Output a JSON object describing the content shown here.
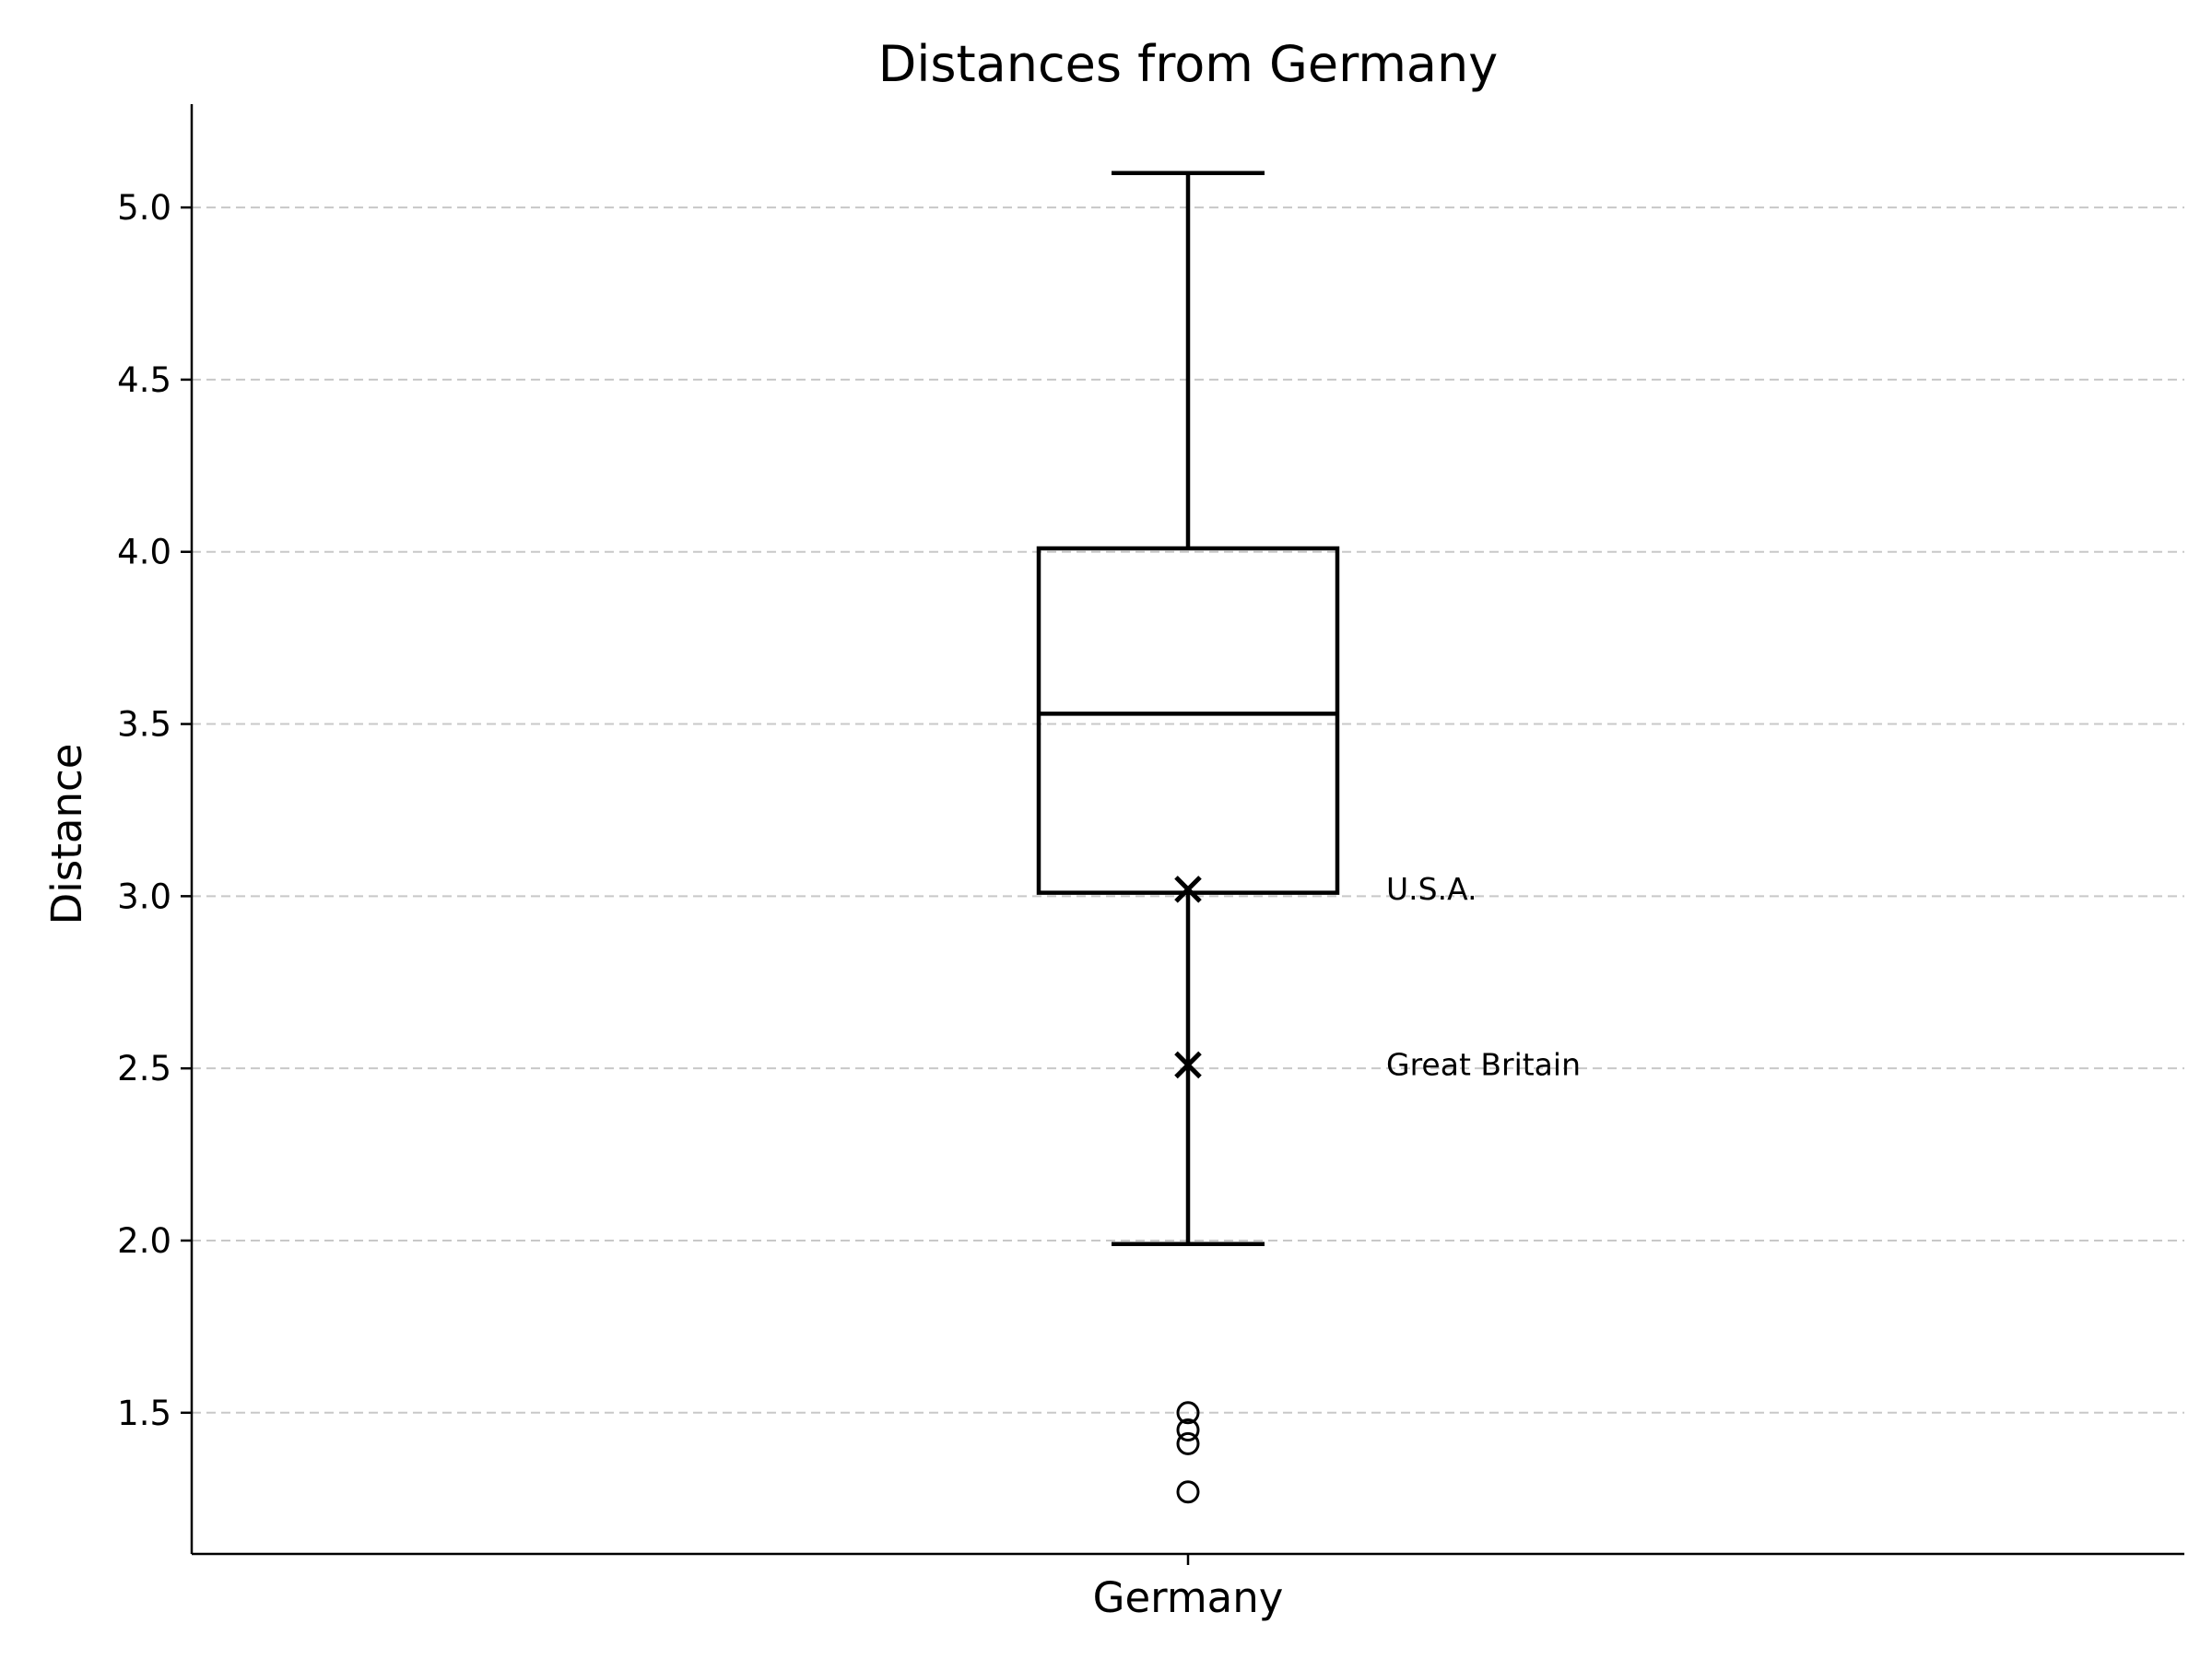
{
  "chart_data": {
    "type": "box",
    "title": "Distances from Germany",
    "xlabel": "",
    "ylabel": "Distance",
    "categories": [
      "Germany"
    ],
    "ylim": [
      1.09,
      5.3
    ],
    "yticks": [
      1.5,
      2.0,
      2.5,
      3.0,
      3.5,
      4.0,
      4.5,
      5.0
    ],
    "ytick_labels": [
      "1.5",
      "2.0",
      "2.5",
      "3.0",
      "3.5",
      "4.0",
      "4.5",
      "5.0"
    ],
    "grid": "y, dashed",
    "box": {
      "category": "Germany",
      "whisker_low": 1.99,
      "q1": 3.01,
      "median": 3.53,
      "q3": 4.01,
      "whisker_high": 5.1
    },
    "outliers": [
      1.5,
      1.45,
      1.41,
      1.27
    ],
    "highlights": [
      {
        "label": "U.S.A.",
        "value": 3.02
      },
      {
        "label": "Great Britain",
        "value": 2.51
      }
    ],
    "colors": {
      "line": "#000000",
      "grid": "#c8c8c8"
    }
  }
}
